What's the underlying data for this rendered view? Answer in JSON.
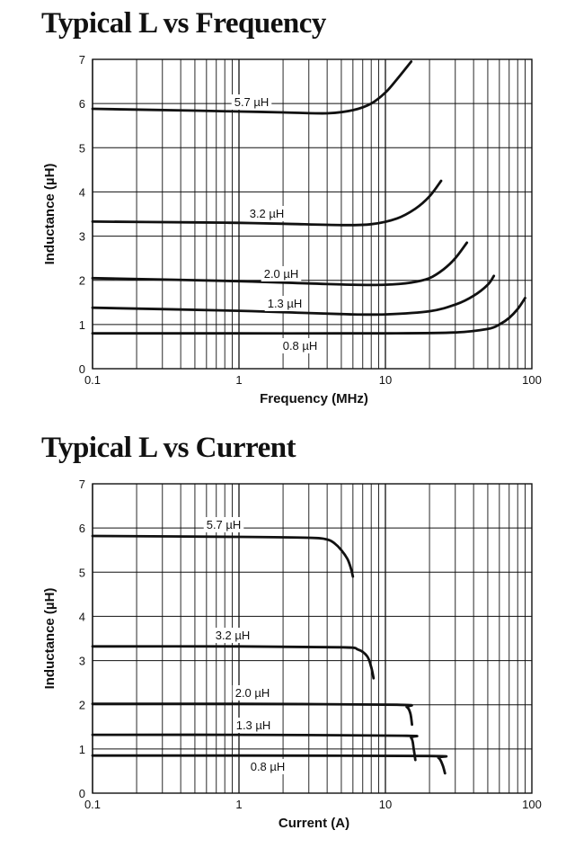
{
  "chart_data": [
    {
      "type": "line",
      "title": "Typical L vs Frequency",
      "xlabel": "Frequency (MHz)",
      "ylabel": "Inductance (µH)",
      "xscale": "log",
      "xlim": [
        0.1,
        100
      ],
      "ylim": [
        0,
        7
      ],
      "x_tick_labels": [
        "0.1",
        "1",
        "10",
        "100"
      ],
      "y_tick_labels": [
        "0",
        "1",
        "2",
        "3",
        "4",
        "5",
        "6",
        "7"
      ],
      "grid": true,
      "series": [
        {
          "name": "5.7 µH",
          "x": [
            0.1,
            0.5,
            1,
            2,
            4,
            6,
            8,
            10,
            12,
            15
          ],
          "y": [
            5.88,
            5.84,
            5.82,
            5.8,
            5.78,
            5.85,
            6.0,
            6.25,
            6.55,
            6.95
          ]
        },
        {
          "name": "3.2 µH",
          "x": [
            0.1,
            0.5,
            1,
            2,
            5,
            8,
            12,
            16,
            20,
            24
          ],
          "y": [
            3.33,
            3.31,
            3.3,
            3.28,
            3.25,
            3.27,
            3.4,
            3.62,
            3.9,
            4.25
          ]
        },
        {
          "name": "2.0 µH",
          "x": [
            0.1,
            1,
            3,
            6,
            10,
            15,
            20,
            25,
            30,
            36
          ],
          "y": [
            2.05,
            1.98,
            1.93,
            1.9,
            1.9,
            1.95,
            2.05,
            2.25,
            2.5,
            2.85
          ]
        },
        {
          "name": "1.3 µH",
          "x": [
            0.1,
            1,
            3,
            6,
            10,
            20,
            30,
            40,
            50,
            55
          ],
          "y": [
            1.38,
            1.31,
            1.26,
            1.23,
            1.23,
            1.3,
            1.45,
            1.65,
            1.9,
            2.1
          ]
        },
        {
          "name": "0.8 µH",
          "x": [
            0.1,
            1,
            10,
            30,
            50,
            60,
            70,
            80,
            90
          ],
          "y": [
            0.8,
            0.8,
            0.8,
            0.82,
            0.9,
            1.0,
            1.15,
            1.35,
            1.6
          ]
        }
      ]
    },
    {
      "type": "line",
      "title": "Typical L vs Current",
      "xlabel": "Current (A)",
      "ylabel": "Inductance (µH)",
      "xscale": "log",
      "xlim": [
        0.1,
        100
      ],
      "ylim": [
        0,
        7
      ],
      "x_tick_labels": [
        "0.1",
        "1",
        "10",
        "100"
      ],
      "y_tick_labels": [
        "0",
        "1",
        "2",
        "3",
        "4",
        "5",
        "6",
        "7"
      ],
      "grid": true,
      "series": [
        {
          "name": "5.7 µH",
          "x": [
            0.1,
            1,
            3,
            4,
            4.5,
            5,
            5.5,
            5.8,
            6.0
          ],
          "y": [
            5.82,
            5.8,
            5.78,
            5.74,
            5.65,
            5.5,
            5.3,
            5.1,
            4.9
          ]
        },
        {
          "name": "3.2 µH",
          "x": [
            0.1,
            1,
            5,
            6.5,
            7.5,
            8,
            8.3
          ],
          "y": [
            3.32,
            3.32,
            3.3,
            3.25,
            3.1,
            2.85,
            2.6
          ]
        },
        {
          "name": "2.0 µH",
          "x": [
            0.1,
            1,
            12,
            14,
            14.8,
            15.2
          ],
          "y": [
            2.02,
            2.02,
            2.0,
            1.95,
            1.8,
            1.55
          ]
        },
        {
          "name": "1.3 µH",
          "x": [
            0.1,
            1,
            13,
            15,
            15.6,
            16
          ],
          "y": [
            1.32,
            1.32,
            1.3,
            1.25,
            1.0,
            0.75
          ]
        },
        {
          "name": "0.8 µH",
          "x": [
            0.1,
            1,
            20,
            23,
            24.5,
            25.5
          ],
          "y": [
            0.85,
            0.85,
            0.84,
            0.8,
            0.65,
            0.45
          ]
        }
      ]
    }
  ]
}
